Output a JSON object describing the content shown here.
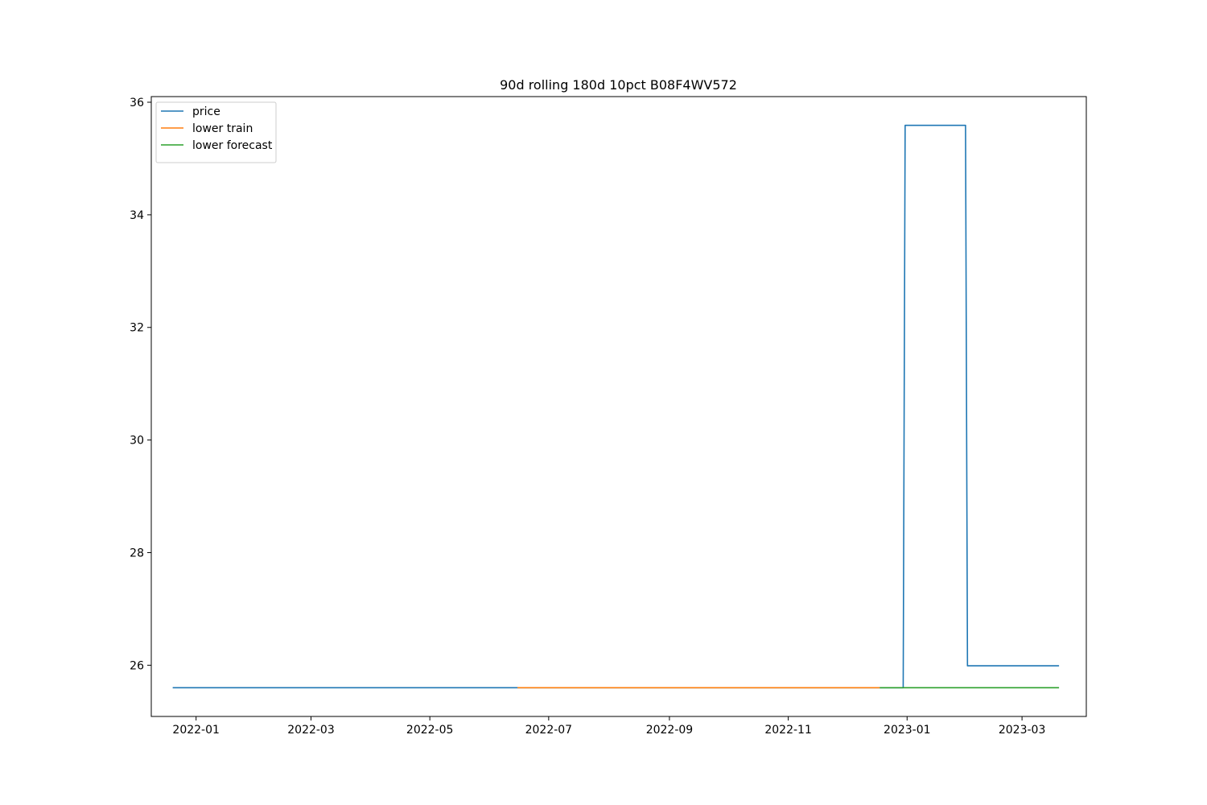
{
  "chart_data": {
    "type": "line",
    "title": "90d rolling 180d 10pct B08F4WV572",
    "xlabel": "",
    "ylabel": "",
    "x_range": [
      "2021-12-09",
      "2023-04-03"
    ],
    "ylim": [
      25.09,
      36.1
    ],
    "x_ticks": [
      {
        "date": "2022-01-01",
        "label": "2022-01"
      },
      {
        "date": "2022-03-01",
        "label": "2022-03"
      },
      {
        "date": "2022-05-01",
        "label": "2022-05"
      },
      {
        "date": "2022-07-01",
        "label": "2022-07"
      },
      {
        "date": "2022-09-01",
        "label": "2022-09"
      },
      {
        "date": "2022-11-01",
        "label": "2022-11"
      },
      {
        "date": "2023-01-01",
        "label": "2023-01"
      },
      {
        "date": "2023-03-01",
        "label": "2023-03"
      }
    ],
    "y_ticks": [
      26,
      28,
      30,
      32,
      34,
      36
    ],
    "legend_position": "top-left",
    "series": [
      {
        "name": "price",
        "color": "#1f77b4",
        "points": [
          [
            "2021-12-20",
            25.6
          ],
          [
            "2022-12-30",
            25.6
          ],
          [
            "2022-12-31",
            35.59
          ],
          [
            "2023-01-31",
            35.59
          ],
          [
            "2023-02-01",
            25.99
          ],
          [
            "2023-03-20",
            25.99
          ]
        ]
      },
      {
        "name": "lower train",
        "color": "#ff7f0e",
        "points": [
          [
            "2022-06-15",
            25.6
          ],
          [
            "2022-12-18",
            25.6
          ]
        ]
      },
      {
        "name": "lower forecast",
        "color": "#2ca02c",
        "points": [
          [
            "2022-12-18",
            25.6
          ],
          [
            "2023-03-20",
            25.6
          ]
        ]
      }
    ]
  }
}
